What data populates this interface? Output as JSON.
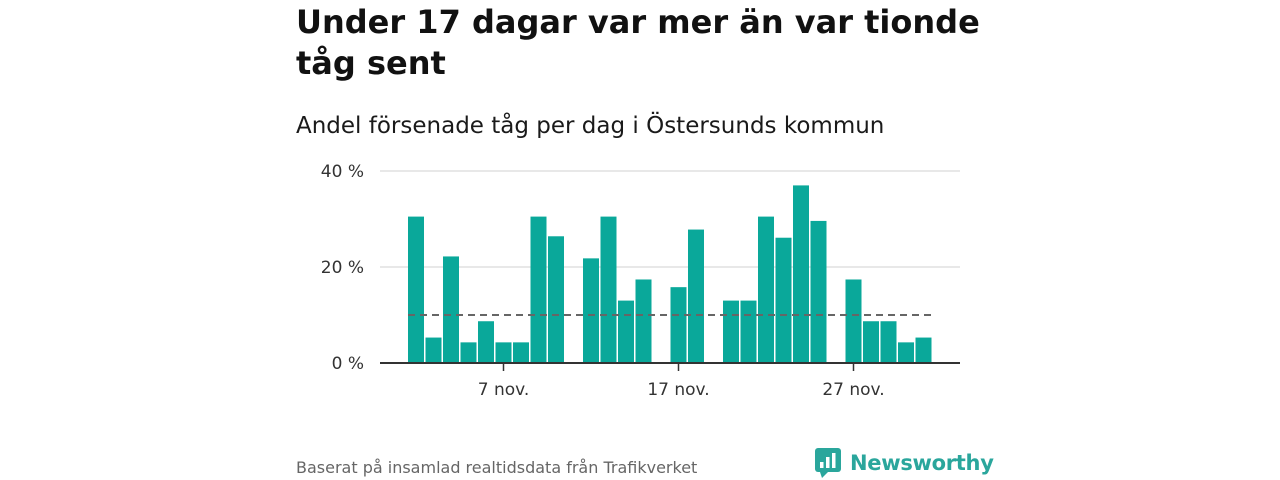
{
  "title": "Under 17 dagar var mer än var tionde tåg sent",
  "subtitle": "Andel försenade tåg per dag i Östersunds kommun",
  "source": "Baserat på insamlad realtidsdata från Trafikverket",
  "brand": {
    "name": "Newsworthy",
    "logo_icon": "newsworthy-logo-icon"
  },
  "colors": {
    "bar": "#0aa89a",
    "reference_line": "#666666",
    "grid": "#d9d9d9",
    "axis": "#333333",
    "brand": "#2aa69c"
  },
  "chart_data": {
    "type": "bar",
    "title": "Under 17 dagar var mer än var tionde tåg sent",
    "subtitle": "Andel försenade tåg per dag i Östersunds kommun",
    "xlabel": "",
    "ylabel": "",
    "x_unit": "day of month (November)",
    "x_tick_values": [
      7,
      17,
      27
    ],
    "x_tick_labels": [
      "7 nov.",
      "17 nov.",
      "27 nov."
    ],
    "y_ticks": [
      0,
      20,
      40
    ],
    "y_tick_labels": [
      "0 %",
      "20 %",
      "40 %"
    ],
    "ylim": [
      0,
      40
    ],
    "grid": true,
    "reference_line": {
      "value": 10,
      "style": "dashed"
    },
    "days": [
      2,
      3,
      4,
      5,
      6,
      7,
      8,
      9,
      10,
      11,
      12,
      13,
      14,
      15,
      16,
      17,
      18,
      19,
      20,
      21,
      22,
      23,
      24,
      25,
      26,
      27,
      28,
      29,
      30,
      31
    ],
    "values": [
      30.5,
      5.3,
      22.2,
      4.3,
      8.7,
      4.3,
      4.3,
      30.5,
      26.4,
      0,
      21.8,
      30.5,
      13.0,
      17.4,
      0,
      15.8,
      27.8,
      0,
      13.0,
      13.0,
      30.5,
      26.1,
      37.0,
      29.6,
      0,
      17.4,
      8.7,
      8.7,
      4.3,
      5.3
    ]
  }
}
